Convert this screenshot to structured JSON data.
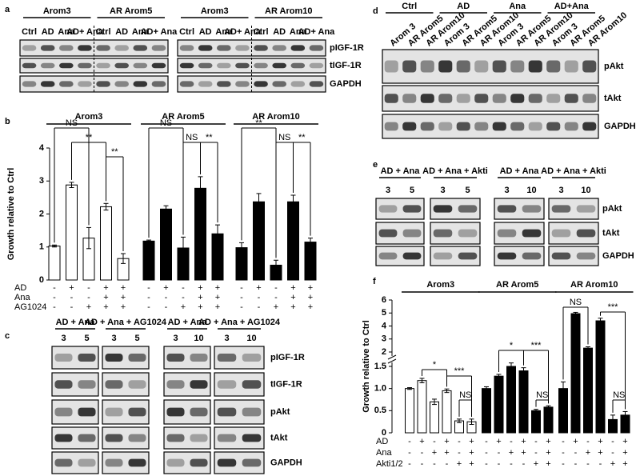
{
  "panel_labels": [
    "a",
    "b",
    "c",
    "d",
    "e",
    "f"
  ],
  "blots": {
    "a": {
      "headers": [
        "Arom3",
        "AR Arom5",
        "Arom3",
        "AR Arom10"
      ],
      "lanes": [
        "Ctrl",
        "AD",
        "Ana",
        "AD+ Ana",
        "Ctrl",
        "AD",
        "Ana",
        "AD+ Ana",
        "Ctrl",
        "AD",
        "Ana",
        "AD+ Ana",
        "Ctrl",
        "AD",
        "Ana",
        "AD+ Ana"
      ],
      "rows": [
        "pIGF-1R",
        "tIGF-1R",
        "GAPDH"
      ]
    },
    "c": {
      "headers": [
        "AD + Ana",
        "AD + Ana + AG1024",
        "AD + Ana",
        "AD + Ana + AG1024"
      ],
      "lanes": [
        "3",
        "5",
        "3",
        "5",
        "3",
        "10",
        "3",
        "10"
      ],
      "rows": [
        "pIGF-1R",
        "tIGF-1R",
        "pAkt",
        "tAkt",
        "GAPDH"
      ]
    },
    "d": {
      "headers": [
        "Ctrl",
        "AD",
        "Ana",
        "AD+Ana"
      ],
      "lanes": [
        "Arom 3",
        "AR Arom5",
        "AR Arom10",
        "Arom 3",
        "AR Arom5",
        "AR Arom10",
        "Arom 3",
        "AR Arom5",
        "AR Arom10",
        "Arom 3",
        "AR Arom5",
        "AR Arom10"
      ],
      "rows": [
        "pAkt",
        "tAkt",
        "GAPDH"
      ]
    },
    "e": {
      "headers": [
        "AD + Ana",
        "AD + Ana + Akti",
        "AD + Ana",
        "AD + Ana + Akti"
      ],
      "lanes": [
        "3",
        "5",
        "3",
        "5",
        "3",
        "10",
        "3",
        "10"
      ],
      "rows": [
        "pAkt",
        "tAkt",
        "GAPDH"
      ]
    }
  },
  "chart_data": [
    {
      "type": "bar",
      "y_label": "Growth relative to Ctrl",
      "ylim": [
        0,
        4
      ],
      "yticks": [
        0,
        1,
        2,
        3,
        4
      ],
      "series": [
        {
          "name": "Arom3",
          "color": "#ffffff",
          "values": [
            1.03,
            2.88,
            1.27,
            2.22,
            0.65
          ],
          "errors": [
            0.03,
            0.08,
            0.32,
            0.1,
            0.15
          ]
        },
        {
          "name": "AR Arom5",
          "color": "#000000",
          "values": [
            1.18,
            2.15,
            0.97,
            2.78,
            1.4
          ],
          "errors": [
            0.03,
            0.1,
            0.33,
            0.35,
            0.27
          ]
        },
        {
          "name": "AR Arom10",
          "color": "#000000",
          "values": [
            0.98,
            2.37,
            0.45,
            2.37,
            1.15
          ],
          "errors": [
            0.15,
            0.25,
            0.15,
            0.2,
            0.12
          ]
        }
      ],
      "treatments": [
        {
          "name": "AD",
          "signs": [
            "-",
            "+",
            "-",
            "+",
            "+",
            "-",
            "+",
            "-",
            "+",
            "+",
            "-",
            "+",
            "-",
            "+",
            "+"
          ]
        },
        {
          "name": "Ana",
          "signs": [
            "-",
            "-",
            "-",
            "+",
            "+",
            "-",
            "-",
            "-",
            "+",
            "+",
            "-",
            "-",
            "-",
            "+",
            "+"
          ]
        },
        {
          "name": "AG1024",
          "signs": [
            "-",
            "-",
            "+",
            "+",
            "+",
            "-",
            "-",
            "+",
            "+",
            "+",
            "-",
            "-",
            "+",
            "+",
            "+"
          ]
        }
      ],
      "annotations": [
        "NS",
        "**",
        "**",
        "NS",
        "NS",
        "**",
        "**",
        "NS",
        "**"
      ]
    },
    {
      "type": "bar",
      "y_label": "Growth relative to Ctrl",
      "ylim": [
        0,
        6
      ],
      "axis_break": [
        1.5,
        2
      ],
      "yticks": [
        0,
        0.5,
        {
          "value": 1,
          "label": "1.0"
        },
        1.5,
        2,
        3,
        4,
        5,
        6
      ],
      "series": [
        {
          "name": "Arom3",
          "color": "#ffffff",
          "values": [
            1.0,
            1.18,
            0.7,
            0.95,
            0.27,
            0.25
          ],
          "errors": [
            0.02,
            0.05,
            0.06,
            0.04,
            0.04,
            0.06
          ]
        },
        {
          "name": "AR Arom5",
          "color": "#000000",
          "values": [
            1.0,
            1.28,
            1.5,
            1.4,
            0.5,
            0.58
          ],
          "errors": [
            0.04,
            0.04,
            0.12,
            0.07,
            0.03,
            0.03
          ]
        },
        {
          "name": "AR Arom10",
          "color": "#000000",
          "values": [
            1.0,
            4.95,
            2.3,
            4.4,
            0.3,
            0.4
          ],
          "errors": [
            0.15,
            0.1,
            0.1,
            0.2,
            0.1,
            0.08
          ]
        }
      ],
      "treatments": [
        {
          "name": "AD",
          "signs": [
            "-",
            "+",
            "-",
            "+",
            "-",
            "+",
            "-",
            "+",
            "-",
            "+",
            "-",
            "+",
            "-",
            "+",
            "-",
            "+",
            "-",
            "+"
          ]
        },
        {
          "name": "Ana",
          "signs": [
            "-",
            "-",
            "+",
            "+",
            "-",
            "+",
            "-",
            "-",
            "+",
            "+",
            "-",
            "+",
            "-",
            "-",
            "+",
            "+",
            "-",
            "+"
          ]
        },
        {
          "name": "Akti1/2",
          "signs": [
            "-",
            "-",
            "-",
            "-",
            "+",
            "+",
            "-",
            "-",
            "-",
            "-",
            "+",
            "+",
            "-",
            "-",
            "-",
            "-",
            "+",
            "+"
          ]
        }
      ],
      "annotations": [
        "*",
        "***",
        "NS",
        "*",
        "***",
        "NS",
        "NS",
        "***",
        "NS"
      ]
    }
  ]
}
